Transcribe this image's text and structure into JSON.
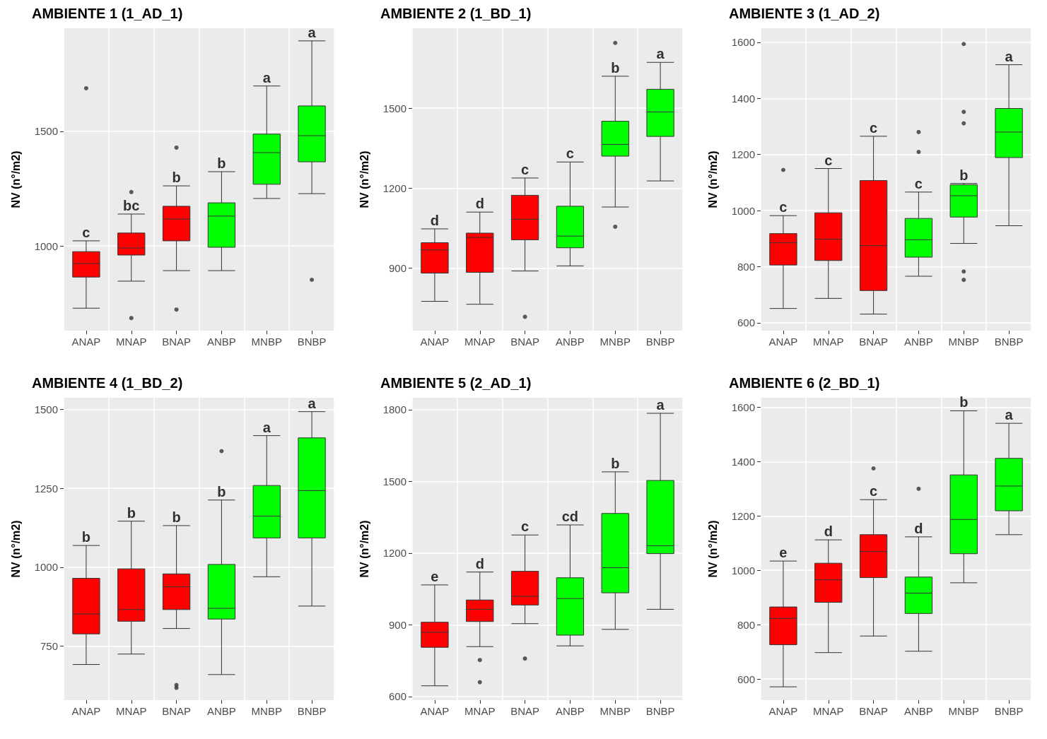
{
  "chart_data": [
    {
      "type": "box",
      "title": "AMBIENTE 1 (1_AD_1)",
      "ylabel": "NV (n°/m2)",
      "categories": [
        "ANAP",
        "MNAP",
        "BNAP",
        "ANBP",
        "MNBP",
        "BNBP"
      ],
      "colors": [
        "#ff0000",
        "#ff0000",
        "#ff0000",
        "#00ff00",
        "#00ff00",
        "#00ff00"
      ],
      "ylim": [
        630,
        1950
      ],
      "yticks": [
        1000,
        1500
      ],
      "grid": true,
      "boxes": [
        {
          "low": 728,
          "q1": 864,
          "median": 923,
          "q3": 975,
          "high": 1022,
          "outliers": [
            1688
          ]
        },
        {
          "low": 846,
          "q1": 960,
          "median": 991,
          "q3": 1056,
          "high": 1139,
          "outliers": [
            1235,
            685
          ]
        },
        {
          "low": 892,
          "q1": 1022,
          "median": 1117,
          "q3": 1173,
          "high": 1262,
          "outliers": [
            1429,
            722
          ]
        },
        {
          "low": 892,
          "q1": 994,
          "median": 1130,
          "q3": 1188,
          "high": 1324
        },
        {
          "low": 1207,
          "q1": 1269,
          "median": 1407,
          "q3": 1488,
          "high": 1698
        },
        {
          "low": 1228,
          "q1": 1367,
          "median": 1481,
          "q3": 1611,
          "high": 1895,
          "outliers": [
            852
          ]
        }
      ],
      "annotations": [
        {
          "text": "c",
          "x": "ANAP",
          "y": 1022
        },
        {
          "text": "bc",
          "x": "MNAP",
          "y": 1139
        },
        {
          "text": "b",
          "x": "BNAP",
          "y": 1262
        },
        {
          "text": "b",
          "x": "ANBP",
          "y": 1324
        },
        {
          "text": "a",
          "x": "MNBP",
          "y": 1698
        },
        {
          "text": "a",
          "x": "BNBP",
          "y": 1895
        }
      ]
    },
    {
      "type": "box",
      "title": "AMBIENTE 2 (1_BD_1)",
      "ylabel": "NV (n°/m2)",
      "categories": [
        "ANAP",
        "MNAP",
        "BNAP",
        "ANBP",
        "MNBP",
        "BNBP"
      ],
      "colors": [
        "#ff0000",
        "#ff0000",
        "#ff0000",
        "#00ff00",
        "#00ff00",
        "#00ff00"
      ],
      "ylim": [
        665,
        1800
      ],
      "yticks": [
        900,
        1200,
        1500
      ],
      "grid": true,
      "boxes": [
        {
          "low": 775,
          "q1": 881,
          "median": 968,
          "q3": 995,
          "high": 1047
        },
        {
          "low": 764,
          "q1": 884,
          "median": 1015,
          "q3": 1031,
          "high": 1110
        },
        {
          "low": 889,
          "q1": 1006,
          "median": 1083,
          "q3": 1173,
          "high": 1238,
          "outliers": [
            717
          ]
        },
        {
          "low": 908,
          "q1": 976,
          "median": 1020,
          "q3": 1132,
          "high": 1298
        },
        {
          "low": 1129,
          "q1": 1320,
          "median": 1364,
          "q3": 1451,
          "high": 1620,
          "outliers": [
            1745,
            1055
          ]
        },
        {
          "low": 1227,
          "q1": 1394,
          "median": 1486,
          "q3": 1571,
          "high": 1672
        }
      ],
      "annotations": [
        {
          "text": "d",
          "x": "ANAP",
          "y": 1047
        },
        {
          "text": "d",
          "x": "MNAP",
          "y": 1110
        },
        {
          "text": "c",
          "x": "BNAP",
          "y": 1238
        },
        {
          "text": "c",
          "x": "ANBP",
          "y": 1298
        },
        {
          "text": "b",
          "x": "MNBP",
          "y": 1620
        },
        {
          "text": "a",
          "x": "BNBP",
          "y": 1672
        }
      ]
    },
    {
      "type": "box",
      "title": "AMBIENTE 3 (1_AD_2)",
      "ylabel": "NV (n°/m2)",
      "categories": [
        "ANAP",
        "MNAP",
        "BNAP",
        "ANBP",
        "MNBP",
        "BNBP"
      ],
      "colors": [
        "#ff0000",
        "#ff0000",
        "#ff0000",
        "#00ff00",
        "#00ff00",
        "#00ff00"
      ],
      "ylim": [
        572,
        1650
      ],
      "yticks": [
        600,
        800,
        1000,
        1200,
        1400,
        1600
      ],
      "grid": true,
      "boxes": [
        {
          "low": 651,
          "q1": 806,
          "median": 885,
          "q3": 918,
          "high": 982,
          "outliers": [
            1145
          ]
        },
        {
          "low": 687,
          "q1": 822,
          "median": 898,
          "q3": 992,
          "high": 1150
        },
        {
          "low": 631,
          "q1": 715,
          "median": 875,
          "q3": 1107,
          "high": 1265
        },
        {
          "low": 766,
          "q1": 834,
          "median": 896,
          "q3": 972,
          "high": 1066,
          "outliers": [
            1280,
            1209
          ]
        },
        {
          "low": 883,
          "q1": 977,
          "median": 1053,
          "q3": 1092,
          "high": 1097,
          "outliers": [
            1594,
            1352,
            1311,
            783,
            753
          ]
        },
        {
          "low": 946,
          "q1": 1189,
          "median": 1280,
          "q3": 1364,
          "high": 1520
        }
      ],
      "annotations": [
        {
          "text": "c",
          "x": "ANAP",
          "y": 982
        },
        {
          "text": "c",
          "x": "MNAP",
          "y": 1150
        },
        {
          "text": "c",
          "x": "BNAP",
          "y": 1265
        },
        {
          "text": "c",
          "x": "ANBP",
          "y": 1066
        },
        {
          "text": "b",
          "x": "MNBP",
          "y": 1097
        },
        {
          "text": "a",
          "x": "BNBP",
          "y": 1520
        }
      ]
    },
    {
      "type": "box",
      "title": "AMBIENTE 4 (1_BD_2)",
      "ylabel": "NV (n°/m2)",
      "categories": [
        "ANAP",
        "MNAP",
        "BNAP",
        "ANBP",
        "MNBP",
        "BNBP"
      ],
      "colors": [
        "#ff0000",
        "#ff0000",
        "#ff0000",
        "#00ff00",
        "#00ff00",
        "#00ff00"
      ],
      "ylim": [
        579,
        1537
      ],
      "yticks": [
        750,
        1000,
        1250,
        1500
      ],
      "grid": true,
      "boxes": [
        {
          "low": 692,
          "q1": 789,
          "median": 852,
          "q3": 965,
          "high": 1069
        },
        {
          "low": 725,
          "q1": 829,
          "median": 866,
          "q3": 995,
          "high": 1146
        },
        {
          "low": 806,
          "q1": 866,
          "median": 938,
          "q3": 979,
          "high": 1132,
          "outliers": [
            627,
            618
          ]
        },
        {
          "low": 660,
          "q1": 836,
          "median": 870,
          "q3": 1009,
          "high": 1213,
          "outliers": [
            1368
          ]
        },
        {
          "low": 970,
          "q1": 1093,
          "median": 1162,
          "q3": 1259,
          "high": 1417
        },
        {
          "low": 877,
          "q1": 1093,
          "median": 1243,
          "q3": 1410,
          "high": 1493
        }
      ],
      "annotations": [
        {
          "text": "b",
          "x": "ANAP",
          "y": 1069
        },
        {
          "text": "b",
          "x": "MNAP",
          "y": 1146
        },
        {
          "text": "b",
          "x": "BNAP",
          "y": 1132
        },
        {
          "text": "b",
          "x": "ANBP",
          "y": 1213
        },
        {
          "text": "a",
          "x": "MNBP",
          "y": 1417
        },
        {
          "text": "a",
          "x": "BNBP",
          "y": 1493
        }
      ]
    },
    {
      "type": "box",
      "title": "AMBIENTE 5 (2_AD_1)",
      "ylabel": "NV (n°/m2)",
      "categories": [
        "ANAP",
        "MNAP",
        "BNAP",
        "ANBP",
        "MNBP",
        "BNBP"
      ],
      "colors": [
        "#ff0000",
        "#ff0000",
        "#ff0000",
        "#00ff00",
        "#00ff00",
        "#00ff00"
      ],
      "ylim": [
        585,
        1850
      ],
      "yticks": [
        600,
        900,
        1200,
        1500,
        1800
      ],
      "grid": true,
      "boxes": [
        {
          "low": 645,
          "q1": 806,
          "median": 869,
          "q3": 911,
          "high": 1067
        },
        {
          "low": 809,
          "q1": 914,
          "median": 965,
          "q3": 1004,
          "high": 1121,
          "outliers": [
            753,
            660
          ]
        },
        {
          "low": 905,
          "q1": 983,
          "median": 1019,
          "q3": 1124,
          "high": 1276,
          "outliers": [
            759
          ]
        },
        {
          "low": 812,
          "q1": 857,
          "median": 1010,
          "q3": 1097,
          "high": 1318
        },
        {
          "low": 881,
          "q1": 1034,
          "median": 1139,
          "q3": 1366,
          "high": 1540
        },
        {
          "low": 965,
          "q1": 1198,
          "median": 1231,
          "q3": 1504,
          "high": 1785
        }
      ],
      "annotations": [
        {
          "text": "e",
          "x": "ANAP",
          "y": 1067
        },
        {
          "text": "d",
          "x": "MNAP",
          "y": 1121
        },
        {
          "text": "c",
          "x": "BNAP",
          "y": 1276
        },
        {
          "text": "cd",
          "x": "ANBP",
          "y": 1318
        },
        {
          "text": "b",
          "x": "MNBP",
          "y": 1540
        },
        {
          "text": "a",
          "x": "BNBP",
          "y": 1785
        }
      ]
    },
    {
      "type": "box",
      "title": "AMBIENTE 6 (2_BD_1)",
      "ylabel": "NV (n°/m2)",
      "categories": [
        "ANAP",
        "MNAP",
        "BNAP",
        "ANBP",
        "MNBP",
        "BNBP"
      ],
      "colors": [
        "#ff0000",
        "#ff0000",
        "#ff0000",
        "#00ff00",
        "#00ff00",
        "#00ff00"
      ],
      "ylim": [
        522,
        1635
      ],
      "yticks": [
        600,
        800,
        1000,
        1200,
        1400,
        1600
      ],
      "grid": true,
      "boxes": [
        {
          "low": 571,
          "q1": 726,
          "median": 823,
          "q3": 865,
          "high": 1034
        },
        {
          "low": 697,
          "q1": 882,
          "median": 965,
          "q3": 1026,
          "high": 1112
        },
        {
          "low": 758,
          "q1": 973,
          "median": 1069,
          "q3": 1131,
          "high": 1260,
          "outliers": [
            1375
          ]
        },
        {
          "low": 702,
          "q1": 841,
          "median": 916,
          "q3": 975,
          "high": 1123,
          "outliers": [
            1300
          ]
        },
        {
          "low": 954,
          "q1": 1061,
          "median": 1187,
          "q3": 1351,
          "high": 1587
        },
        {
          "low": 1131,
          "q1": 1219,
          "median": 1310,
          "q3": 1412,
          "high": 1541
        }
      ],
      "annotations": [
        {
          "text": "e",
          "x": "ANAP",
          "y": 1034
        },
        {
          "text": "d",
          "x": "MNAP",
          "y": 1112
        },
        {
          "text": "c",
          "x": "BNAP",
          "y": 1260
        },
        {
          "text": "d",
          "x": "ANBP",
          "y": 1123
        },
        {
          "text": "b",
          "x": "MNBP",
          "y": 1587
        },
        {
          "text": "a",
          "x": "BNBP",
          "y": 1541
        }
      ]
    }
  ]
}
